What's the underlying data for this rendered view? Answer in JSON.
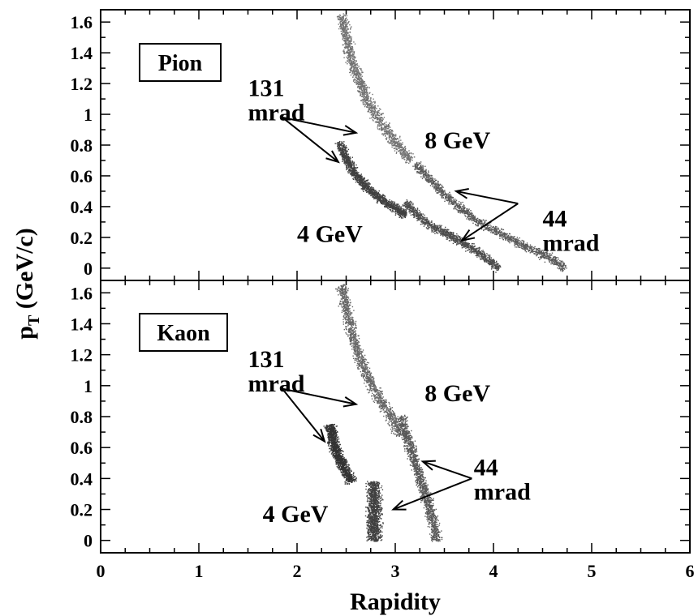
{
  "chart_data": [
    {
      "type": "scatter",
      "panel": "top",
      "box_label": "Pion",
      "xlabel": "Rapidity",
      "ylabel": "p_T (GeV/c)",
      "xlim": [
        0,
        6
      ],
      "ylim": [
        -0.08,
        1.68
      ],
      "x_ticks": [
        "0",
        "1",
        "2",
        "3",
        "4",
        "5",
        "6"
      ],
      "y_ticks": [
        "0",
        "0.2",
        "0.4",
        "0.6",
        "0.8",
        "1",
        "1.2",
        "1.4",
        "1.6"
      ],
      "annotations": [
        {
          "id": "a131",
          "lines": [
            "131",
            "mrad"
          ],
          "x": 1.5,
          "y": 1.12
        },
        {
          "id": "a8",
          "lines": [
            "8 GeV"
          ],
          "x": 3.3,
          "y": 0.78
        },
        {
          "id": "a44",
          "lines": [
            "44",
            "mrad"
          ],
          "x": 4.5,
          "y": 0.27
        },
        {
          "id": "a4",
          "lines": [
            "4 GeV"
          ],
          "x": 2.0,
          "y": 0.17
        }
      ],
      "arrows": [
        {
          "from": [
            1.85,
            0.98
          ],
          "to": [
            2.6,
            0.88
          ]
        },
        {
          "from": [
            1.85,
            0.98
          ],
          "to": [
            2.42,
            0.69
          ]
        },
        {
          "from": [
            4.25,
            0.42
          ],
          "to": [
            3.62,
            0.5
          ]
        },
        {
          "from": [
            4.25,
            0.42
          ],
          "to": [
            3.68,
            0.18
          ]
        }
      ],
      "series": [
        {
          "label": "131 mrad, 8 GeV",
          "curve": [
            [
              2.45,
              1.65
            ],
            [
              2.55,
              1.35
            ],
            [
              2.7,
              1.1
            ],
            [
              2.85,
              0.95
            ],
            [
              3.0,
              0.82
            ],
            [
              3.15,
              0.7
            ]
          ],
          "width": 0.16,
          "shade": 0.45,
          "count": 1600
        },
        {
          "label": "131 mrad, 4 GeV",
          "curve": [
            [
              2.42,
              0.82
            ],
            [
              2.55,
              0.65
            ],
            [
              2.7,
              0.53
            ],
            [
              2.85,
              0.45
            ],
            [
              3.1,
              0.35
            ]
          ],
          "width": 0.13,
          "shade": 0.25,
          "count": 1500
        },
        {
          "label": "44 mrad, 8 GeV",
          "curve": [
            [
              3.2,
              0.68
            ],
            [
              3.5,
              0.48
            ],
            [
              3.8,
              0.32
            ],
            [
              4.2,
              0.18
            ],
            [
              4.6,
              0.06
            ],
            [
              4.72,
              0.0
            ]
          ],
          "width": 0.13,
          "shade": 0.35,
          "count": 1500
        },
        {
          "label": "44 mrad, 4 GeV",
          "curve": [
            [
              3.1,
              0.43
            ],
            [
              3.3,
              0.3
            ],
            [
              3.6,
              0.2
            ],
            [
              3.85,
              0.1
            ],
            [
              4.05,
              0.0
            ]
          ],
          "width": 0.12,
          "shade": 0.3,
          "count": 1300
        }
      ]
    },
    {
      "type": "scatter",
      "panel": "bottom",
      "box_label": "Kaon",
      "xlabel": "Rapidity",
      "ylabel": "p_T (GeV/c)",
      "xlim": [
        0,
        6
      ],
      "ylim": [
        -0.08,
        1.68
      ],
      "x_ticks": [
        "0",
        "1",
        "2",
        "3",
        "4",
        "5",
        "6"
      ],
      "y_ticks": [
        "0",
        "0.2",
        "0.4",
        "0.6",
        "0.8",
        "1",
        "1.2",
        "1.4",
        "1.6"
      ],
      "annotations": [
        {
          "id": "b131",
          "lines": [
            "131",
            "mrad"
          ],
          "x": 1.5,
          "y": 1.12
        },
        {
          "id": "b8",
          "lines": [
            "8 GeV"
          ],
          "x": 3.3,
          "y": 0.9
        },
        {
          "id": "b44",
          "lines": [
            "44",
            "mrad"
          ],
          "x": 3.8,
          "y": 0.42
        },
        {
          "id": "b4",
          "lines": [
            "4 GeV"
          ],
          "x": 1.65,
          "y": 0.12
        }
      ],
      "arrows": [
        {
          "from": [
            1.85,
            0.98
          ],
          "to": [
            2.6,
            0.88
          ]
        },
        {
          "from": [
            1.85,
            0.98
          ],
          "to": [
            2.28,
            0.64
          ]
        },
        {
          "from": [
            3.78,
            0.4
          ],
          "to": [
            3.28,
            0.51
          ]
        },
        {
          "from": [
            3.78,
            0.4
          ],
          "to": [
            2.98,
            0.2
          ]
        }
      ],
      "series": [
        {
          "label": "131 mrad, 8 GeV",
          "curve": [
            [
              2.45,
              1.65
            ],
            [
              2.55,
              1.35
            ],
            [
              2.65,
              1.15
            ],
            [
              2.8,
              0.95
            ],
            [
              2.95,
              0.8
            ],
            [
              3.05,
              0.68
            ]
          ],
          "width": 0.16,
          "shade": 0.4,
          "count": 1500
        },
        {
          "label": "131 mrad, 4 GeV",
          "curve": [
            [
              2.33,
              0.75
            ],
            [
              2.38,
              0.6
            ],
            [
              2.45,
              0.5
            ],
            [
              2.55,
              0.38
            ]
          ],
          "width": 0.15,
          "shade": 0.2,
          "count": 1300
        },
        {
          "label": "44 mrad, 8 GeV",
          "curve": [
            [
              3.05,
              0.8
            ],
            [
              3.15,
              0.6
            ],
            [
              3.25,
              0.4
            ],
            [
              3.35,
              0.2
            ],
            [
              3.42,
              0.0
            ]
          ],
          "width": 0.15,
          "shade": 0.35,
          "count": 1400
        },
        {
          "label": "44 mrad, 4 GeV",
          "curve": [
            [
              2.78,
              0.38
            ],
            [
              2.78,
              0.25
            ],
            [
              2.78,
              0.12
            ],
            [
              2.78,
              0.0
            ]
          ],
          "width": 0.2,
          "shade": 0.25,
          "count": 1200
        }
      ]
    }
  ]
}
